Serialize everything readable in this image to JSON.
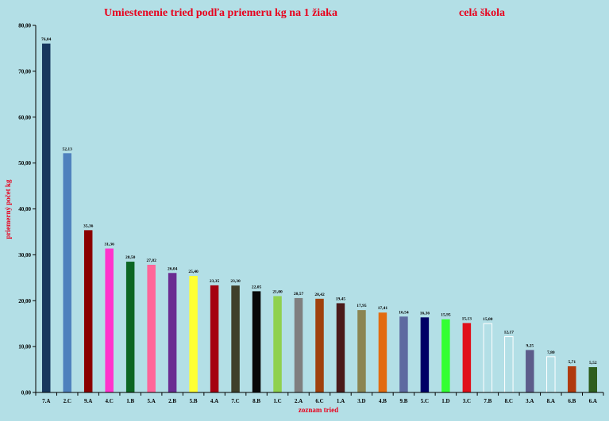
{
  "chart_data": {
    "type": "bar",
    "title": "Umiestenenie tried podľa priemeru kg na 1 žiaka",
    "subtitle": "celá škola",
    "xlabel": "zoznam tried",
    "ylabel": "priemerný počet kg",
    "ylim": [
      0,
      80
    ],
    "yticks": [
      0,
      10,
      20,
      30,
      40,
      50,
      60,
      70,
      80
    ],
    "ytick_labels": [
      "0,00",
      "10,00",
      "20,00",
      "30,00",
      "40,00",
      "50,00",
      "60,00",
      "70,00",
      "80,00"
    ],
    "grid": false,
    "categories": [
      "7.A",
      "2.C",
      "9.A",
      "4.C",
      "1.B",
      "5.A",
      "2.B",
      "5.B",
      "4.A",
      "7.C",
      "8.B",
      "1.C",
      "2.A",
      "6.C",
      "1.A",
      "3.D",
      "4.B",
      "9.B",
      "5.C",
      "1.D",
      "3.C",
      "7.B",
      "8.C",
      "3.A",
      "8.A",
      "6.B",
      "6.A"
    ],
    "values": [
      76.04,
      52.13,
      35.36,
      31.36,
      28.5,
      27.82,
      26.04,
      25.4,
      23.35,
      23.3,
      22.05,
      21.0,
      20.57,
      20.42,
      19.45,
      17.95,
      17.41,
      16.54,
      16.36,
      15.95,
      15.13,
      15.0,
      12.17,
      9.25,
      7.8,
      5.71,
      5.52
    ],
    "value_labels": [
      "76,04",
      "52,13",
      "35,36",
      "31,36",
      "28,50",
      "27,82",
      "26,04",
      "25,40",
      "23,35",
      "23,30",
      "22,05",
      "21,00",
      "20,57",
      "20,42",
      "19,45",
      "17,95",
      "17,41",
      "16,54",
      "16,36",
      "15,95",
      "15,13",
      "15,00",
      "12,17",
      "9,25",
      "7,80",
      "5,71",
      "5,52"
    ],
    "colors": [
      "#17375e",
      "#4f81bd",
      "#8b0000",
      "#ff33cc",
      "#0b6623",
      "#ff6699",
      "#6a2c91",
      "#ffff33",
      "#a50010",
      "#3f3f2a",
      "#080808",
      "#8fd14f",
      "#7f7f7f",
      "#a0410d",
      "#4a1a1a",
      "#8b8552",
      "#e26b10",
      "#5e6aa0",
      "#000066",
      "#33ff33",
      "#e0101a",
      "none",
      "none",
      "#5c5c8a",
      "none",
      "#b03a0e",
      "#2e5e1e"
    ],
    "outline_colors": [
      "none",
      "none",
      "none",
      "none",
      "none",
      "none",
      "none",
      "none",
      "none",
      "none",
      "none",
      "none",
      "none",
      "none",
      "none",
      "none",
      "none",
      "none",
      "none",
      "none",
      "none",
      "#ffffff",
      "#ffffff",
      "none",
      "#ffffff",
      "none",
      "none"
    ]
  },
  "colors": {
    "background": "#b3dfe6",
    "title": "#e8001c"
  }
}
